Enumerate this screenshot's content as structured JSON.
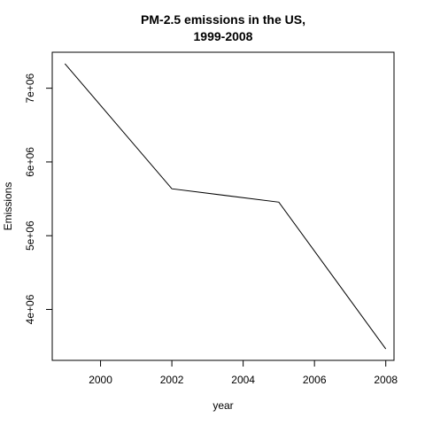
{
  "chart_data": {
    "type": "line",
    "title": [
      "PM-2.5 emissions in the US,",
      "1999-2008"
    ],
    "xlabel": "year",
    "ylabel": "Emissions",
    "x": [
      1999,
      2002,
      2005,
      2008
    ],
    "series": [
      {
        "values": [
          7332967,
          5635780,
          5454703,
          3464206
        ]
      }
    ],
    "xlim": [
      1999,
      2008
    ],
    "ylim": [
      3464206,
      7332967
    ],
    "x_ticks": [
      2000,
      2002,
      2004,
      2006,
      2008
    ],
    "x_tick_labels": [
      "2000",
      "2002",
      "2004",
      "2006",
      "2008"
    ],
    "y_ticks": [
      4000000,
      5000000,
      6000000,
      7000000
    ],
    "y_tick_labels": [
      "4e+06",
      "5e+06",
      "6e+06",
      "7e+06"
    ],
    "line_color": "#000000",
    "grid": false,
    "legend": "none"
  }
}
